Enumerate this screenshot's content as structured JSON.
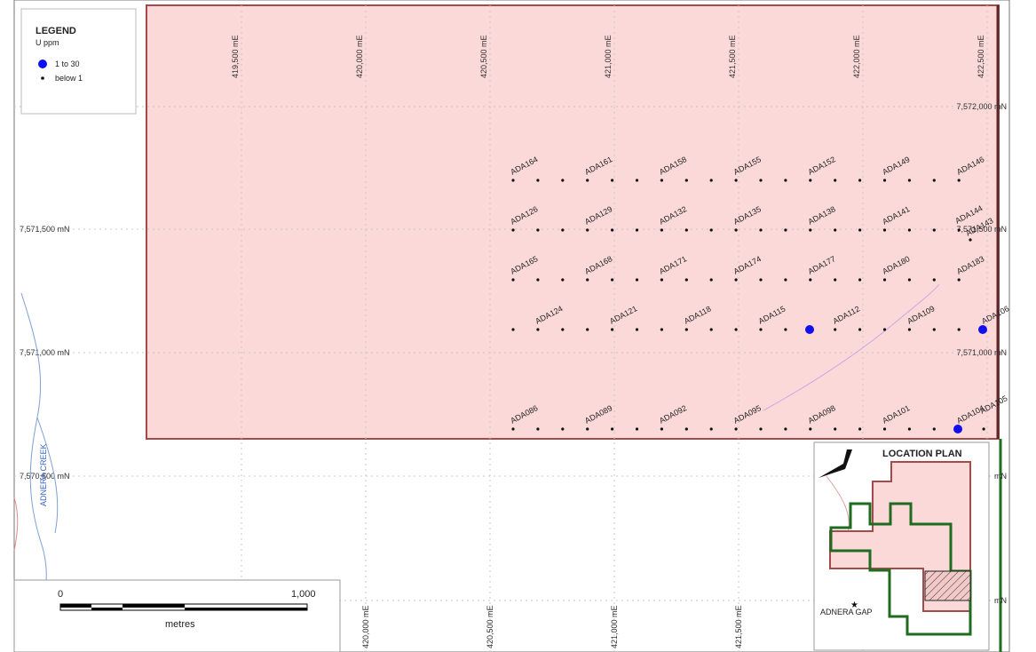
{
  "legend": {
    "title": "LEGEND",
    "subtitle": "U ppm",
    "items": [
      {
        "label": "1 to 30",
        "symbol": "large-dot",
        "color": "#1010ee"
      },
      {
        "label": "below 1",
        "symbol": "small-dot",
        "color": "#111111"
      }
    ]
  },
  "grid": {
    "easting_top_labels": [
      "419,500 mE",
      "420,000 mE",
      "420,500 mE",
      "421,000 mE",
      "421,500 mE",
      "422,000 mE",
      "422,500 mE"
    ],
    "easting_bottom_labels": [
      "420,000 mE",
      "420,500 mE",
      "421,000 mE",
      "421,500 mE"
    ],
    "northing_left_labels": [
      "7,571,500 mN",
      "7,571,000 mN",
      "7,570,500 mN"
    ],
    "northing_right_labels": [
      "7,572,000 mN",
      "7,571,500 mN",
      "7,571,000 mN",
      "mN",
      "mN"
    ]
  },
  "drillholes": {
    "row1": [
      "ADA164",
      "ADA161",
      "ADA158",
      "ADA155",
      "ADA152",
      "ADA149",
      "ADA146"
    ],
    "row2": [
      "ADA126",
      "ADA129",
      "ADA132",
      "ADA135",
      "ADA138",
      "ADA141",
      "ADA144",
      "ADA143"
    ],
    "row3": [
      "ADA165",
      "ADA168",
      "ADA171",
      "ADA174",
      "ADA177",
      "ADA180",
      "ADA183"
    ],
    "row4": [
      "ADA124",
      "ADA121",
      "ADA118",
      "ADA115",
      "ADA112",
      "ADA109",
      "ADA106"
    ],
    "row5": [
      "ADA086",
      "ADA089",
      "ADA092",
      "ADA095",
      "ADA098",
      "ADA101",
      "ADA104",
      "ADA105"
    ]
  },
  "creek_label": "ADNERA CREEK",
  "scalebar": {
    "start": "0",
    "end": "1,000",
    "unit": "metres"
  },
  "location_plan": {
    "title": "LOCATION PLAN",
    "place_label": "ADNERA GAP"
  },
  "colors": {
    "tenement_fill": "#fbd9d9",
    "tenement_outline": "#a44a4a",
    "creek": "#7f9fd4",
    "anomaly_dot": "#1010ee",
    "location_green": "#1f6b1f"
  }
}
